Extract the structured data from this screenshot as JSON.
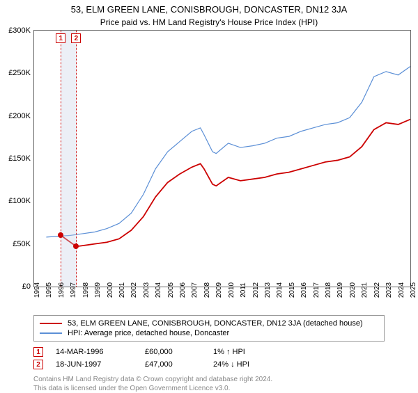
{
  "chart": {
    "type": "line",
    "title": "53, ELM GREEN LANE, CONISBROUGH, DONCASTER, DN12 3JA",
    "subtitle": "Price paid vs. HM Land Registry's House Price Index (HPI)",
    "title_fontsize": 13,
    "subtitle_fontsize": 12,
    "background_color": "#ffffff",
    "plot_border_color": "#666666",
    "ylim": [
      0,
      300000
    ],
    "ytick_step": 50000,
    "y_ticks": [
      {
        "value": 0,
        "label": "£0"
      },
      {
        "value": 50000,
        "label": "£50K"
      },
      {
        "value": 100000,
        "label": "£100K"
      },
      {
        "value": 150000,
        "label": "£150K"
      },
      {
        "value": 200000,
        "label": "£200K"
      },
      {
        "value": 250000,
        "label": "£250K"
      },
      {
        "value": 300000,
        "label": "£300K"
      }
    ],
    "xlim": [
      1994,
      2025
    ],
    "x_ticks": [
      1994,
      1995,
      1996,
      1997,
      1998,
      1999,
      2000,
      2001,
      2002,
      2003,
      2004,
      2005,
      2006,
      2007,
      2008,
      2009,
      2010,
      2011,
      2012,
      2013,
      2014,
      2015,
      2016,
      2017,
      2018,
      2019,
      2020,
      2021,
      2022,
      2023,
      2024,
      2025
    ],
    "x_tick_fontsize": 10,
    "y_tick_fontsize": 11,
    "band": {
      "from_year": 1996.2,
      "to_year": 1997.5,
      "fill_color": "#c8d2e6",
      "fill_opacity": 0.35
    },
    "event_lines": [
      {
        "id": "1",
        "year": 1996.2,
        "color": "#cc0000",
        "style": "dotted"
      },
      {
        "id": "2",
        "year": 1997.47,
        "color": "#cc0000",
        "style": "dotted"
      }
    ],
    "series": [
      {
        "name": "price_paid",
        "label": "53, ELM GREEN LANE, CONISBROUGH, DONCASTER, DN12 3JA (detached house)",
        "color": "#cc0000",
        "line_width": 1.8,
        "points": [
          [
            1996.2,
            60000
          ],
          [
            1997.47,
            47000
          ],
          [
            1998,
            48000
          ],
          [
            1999,
            50000
          ],
          [
            2000,
            52000
          ],
          [
            2001,
            56000
          ],
          [
            2002,
            66000
          ],
          [
            2003,
            82000
          ],
          [
            2004,
            105000
          ],
          [
            2005,
            122000
          ],
          [
            2006,
            132000
          ],
          [
            2007,
            140000
          ],
          [
            2007.7,
            144000
          ],
          [
            2008,
            138000
          ],
          [
            2008.7,
            120000
          ],
          [
            2009,
            118000
          ],
          [
            2010,
            128000
          ],
          [
            2011,
            124000
          ],
          [
            2012,
            126000
          ],
          [
            2013,
            128000
          ],
          [
            2014,
            132000
          ],
          [
            2015,
            134000
          ],
          [
            2016,
            138000
          ],
          [
            2017,
            142000
          ],
          [
            2018,
            146000
          ],
          [
            2019,
            148000
          ],
          [
            2020,
            152000
          ],
          [
            2021,
            164000
          ],
          [
            2022,
            184000
          ],
          [
            2023,
            192000
          ],
          [
            2024,
            190000
          ],
          [
            2025,
            196000
          ]
        ],
        "markers": [
          {
            "year": 1996.2,
            "value": 60000,
            "color": "#cc0000"
          },
          {
            "year": 1997.47,
            "value": 47000,
            "color": "#cc0000"
          }
        ]
      },
      {
        "name": "hpi",
        "label": "HPI: Average price, detached house, Doncaster",
        "color": "#5b8fd6",
        "line_width": 1.2,
        "points": [
          [
            1995,
            58000
          ],
          [
            1996,
            59000
          ],
          [
            1997,
            60000
          ],
          [
            1998,
            62000
          ],
          [
            1999,
            64000
          ],
          [
            2000,
            68000
          ],
          [
            2001,
            74000
          ],
          [
            2002,
            86000
          ],
          [
            2003,
            108000
          ],
          [
            2004,
            138000
          ],
          [
            2005,
            158000
          ],
          [
            2006,
            170000
          ],
          [
            2007,
            182000
          ],
          [
            2007.7,
            186000
          ],
          [
            2008,
            178000
          ],
          [
            2008.7,
            158000
          ],
          [
            2009,
            156000
          ],
          [
            2010,
            168000
          ],
          [
            2011,
            163000
          ],
          [
            2012,
            165000
          ],
          [
            2013,
            168000
          ],
          [
            2014,
            174000
          ],
          [
            2015,
            176000
          ],
          [
            2016,
            182000
          ],
          [
            2017,
            186000
          ],
          [
            2018,
            190000
          ],
          [
            2019,
            192000
          ],
          [
            2020,
            198000
          ],
          [
            2021,
            216000
          ],
          [
            2022,
            246000
          ],
          [
            2023,
            252000
          ],
          [
            2024,
            248000
          ],
          [
            2025,
            258000
          ]
        ]
      }
    ]
  },
  "legend": {
    "border_color": "#999999",
    "items": [
      {
        "color": "#cc0000",
        "label": "53, ELM GREEN LANE, CONISBROUGH, DONCASTER, DN12 3JA (detached house)"
      },
      {
        "color": "#5b8fd6",
        "label": "HPI: Average price, detached house, Doncaster"
      }
    ]
  },
  "transactions": [
    {
      "badge": "1",
      "date": "14-MAR-1996",
      "price": "£60,000",
      "hpi_change": "1% ↑ HPI"
    },
    {
      "badge": "2",
      "date": "18-JUN-1997",
      "price": "£47,000",
      "hpi_change": "24% ↓ HPI"
    }
  ],
  "attribution": {
    "line1": "Contains HM Land Registry data © Crown copyright and database right 2024.",
    "line2": "This data is licensed under the Open Government Licence v3.0."
  }
}
